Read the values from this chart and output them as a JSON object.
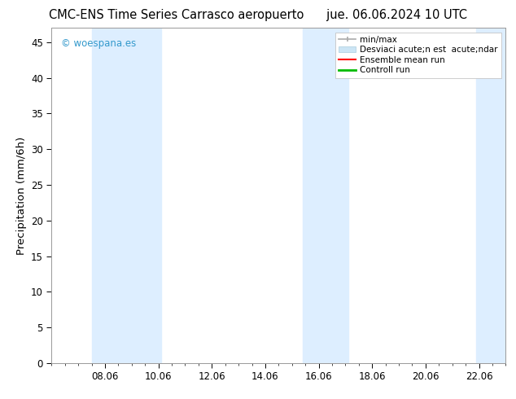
{
  "title_left": "CMC-ENS Time Series Carrasco aeropuerto",
  "title_right": "jue. 06.06.2024 10 UTC",
  "xlabel": "",
  "ylabel": "Precipitation (mm/6h)",
  "ylim": [
    0,
    47
  ],
  "yticks": [
    0,
    5,
    10,
    15,
    20,
    25,
    30,
    35,
    40,
    45
  ],
  "xtick_labels": [
    "08.06",
    "10.06",
    "12.06",
    "14.06",
    "16.06",
    "18.06",
    "20.06",
    "22.06"
  ],
  "xtick_positions": [
    8,
    10,
    12,
    14,
    16,
    18,
    20,
    22
  ],
  "xlim": [
    6.0,
    23.0
  ],
  "shaded_bands": [
    {
      "x_start": 7.5,
      "x_end": 10.1,
      "color": "#ddeeff"
    },
    {
      "x_start": 15.4,
      "x_end": 17.1,
      "color": "#ddeeff"
    },
    {
      "x_start": 21.9,
      "x_end": 23.0,
      "color": "#ddeeff"
    }
  ],
  "watermark": "© woespana.es",
  "watermark_color": "#3399cc",
  "background_color": "#ffffff",
  "title_fontsize": 10.5,
  "tick_fontsize": 8.5,
  "ylabel_fontsize": 9.5,
  "legend_fontsize": 7.5
}
